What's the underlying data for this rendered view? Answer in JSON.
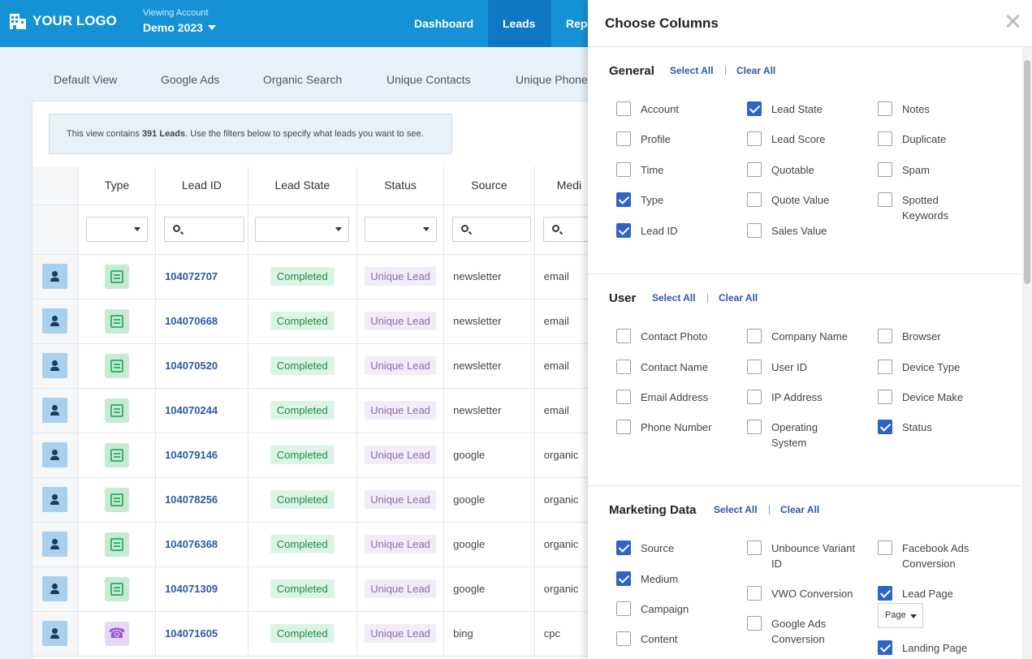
{
  "topbar": {
    "logo_text": "YOUR LOGO",
    "viewing_label": "Viewing Account",
    "account_name": "Demo 2023",
    "nav": [
      "Dashboard",
      "Leads",
      "Repo"
    ]
  },
  "view_tabs": [
    "Default View",
    "Google Ads",
    "Organic Search",
    "Unique Contacts",
    "Unique Phone"
  ],
  "notice": {
    "prefix": "This view contains ",
    "count": "391 Leads",
    "suffix": ". Use the filters below to specify what leads you want to see."
  },
  "table": {
    "headers": [
      "",
      "Type",
      "Lead ID",
      "Lead State",
      "Status",
      "Source",
      "Medi"
    ],
    "rows": [
      {
        "type_icon": "form-icon",
        "lead_id": "104072707",
        "state": "Completed",
        "status": "Unique Lead",
        "source": "newsletter",
        "medium": "email"
      },
      {
        "type_icon": "form-icon",
        "lead_id": "104070668",
        "state": "Completed",
        "status": "Unique Lead",
        "source": "newsletter",
        "medium": "email"
      },
      {
        "type_icon": "form-icon",
        "lead_id": "104070520",
        "state": "Completed",
        "status": "Unique Lead",
        "source": "newsletter",
        "medium": "email"
      },
      {
        "type_icon": "form-icon",
        "lead_id": "104070244",
        "state": "Completed",
        "status": "Unique Lead",
        "source": "newsletter",
        "medium": "email"
      },
      {
        "type_icon": "form-icon",
        "lead_id": "104079146",
        "state": "Completed",
        "status": "Unique Lead",
        "source": "google",
        "medium": "organic"
      },
      {
        "type_icon": "form-icon",
        "lead_id": "104078256",
        "state": "Completed",
        "status": "Unique Lead",
        "source": "google",
        "medium": "organic"
      },
      {
        "type_icon": "form-icon",
        "lead_id": "104076368",
        "state": "Completed",
        "status": "Unique Lead",
        "source": "google",
        "medium": "organic"
      },
      {
        "type_icon": "form-icon",
        "lead_id": "104071309",
        "state": "Completed",
        "status": "Unique Lead",
        "source": "google",
        "medium": "organic"
      },
      {
        "type_icon": "phone-icon",
        "lead_id": "104071605",
        "state": "Completed",
        "status": "Unique Lead",
        "source": "bing",
        "medium": "cpc"
      }
    ]
  },
  "modal": {
    "title": "Choose Columns",
    "select_all": "Select All",
    "clear_all": "Clear All",
    "separator": "|",
    "sections": {
      "general": {
        "title": "General",
        "options": [
          {
            "label": "Account",
            "checked": false
          },
          {
            "label": "Profile",
            "checked": false
          },
          {
            "label": "Time",
            "checked": false
          },
          {
            "label": "Type",
            "checked": true
          },
          {
            "label": "Lead ID",
            "checked": true
          },
          {
            "label": "Lead State",
            "checked": true
          },
          {
            "label": "Lead Score",
            "checked": false
          },
          {
            "label": "Quotable",
            "checked": false
          },
          {
            "label": "Quote Value",
            "checked": false
          },
          {
            "label": "Sales Value",
            "checked": false
          },
          {
            "label": "Notes",
            "checked": false
          },
          {
            "label": "Duplicate",
            "checked": false
          },
          {
            "label": "Spam",
            "checked": false
          },
          {
            "label": "Spotted Keywords",
            "checked": false
          }
        ]
      },
      "user": {
        "title": "User",
        "options": [
          {
            "label": "Contact Photo",
            "checked": false
          },
          {
            "label": "Contact Name",
            "checked": false
          },
          {
            "label": "Email Address",
            "checked": false
          },
          {
            "label": "Phone Number",
            "checked": false
          },
          {
            "label": "Company Name",
            "checked": false
          },
          {
            "label": "User ID",
            "checked": false
          },
          {
            "label": "IP Address",
            "checked": false
          },
          {
            "label": "Operating System",
            "checked": false
          },
          {
            "label": "Browser",
            "checked": false
          },
          {
            "label": "Device Type",
            "checked": false
          },
          {
            "label": "Device Make",
            "checked": false
          },
          {
            "label": "Status",
            "checked": true
          }
        ]
      },
      "marketing": {
        "title": "Marketing Data",
        "options": [
          {
            "label": "Source",
            "checked": true
          },
          {
            "label": "Medium",
            "checked": true
          },
          {
            "label": "Campaign",
            "checked": false
          },
          {
            "label": "Content",
            "checked": false
          },
          {
            "label": "Unbounce Variant ID",
            "checked": false
          },
          {
            "label": "VWO Conversion",
            "checked": false
          },
          {
            "label": "Google Ads Conversion",
            "checked": false
          },
          {
            "label": "Facebook Ads Conversion",
            "checked": false
          },
          {
            "label": "Lead Page",
            "checked": true
          },
          {
            "label": "Landing Page",
            "checked": true
          }
        ],
        "lead_page_select": "Page"
      }
    }
  }
}
